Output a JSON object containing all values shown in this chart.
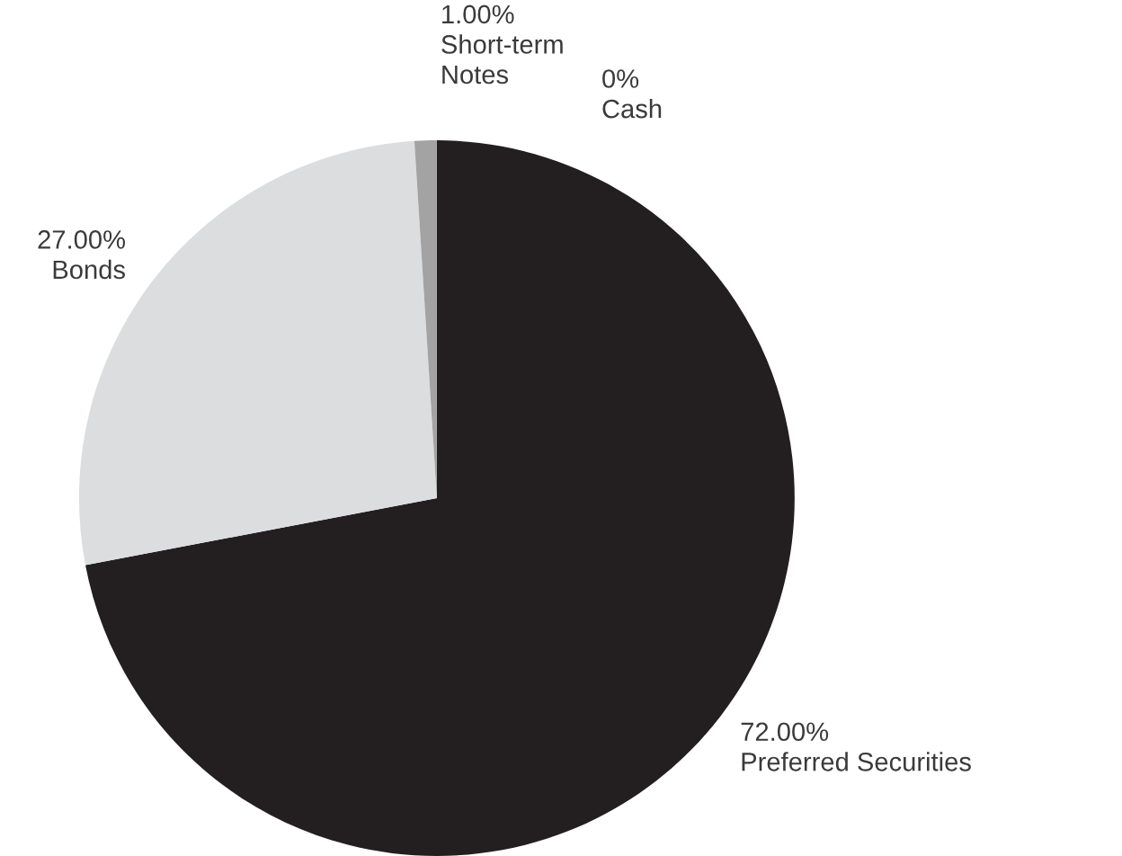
{
  "chart_data": {
    "type": "pie",
    "categories": [
      "Preferred Securities",
      "Bonds",
      "Short-term Notes",
      "Cash"
    ],
    "values": [
      72,
      27,
      1,
      0
    ],
    "value_labels": [
      "72.00%",
      "27.00%",
      "1.00%",
      "0%"
    ],
    "colors": [
      "#231f20",
      "#dcdddf",
      "#a3a3a3",
      "#6d6e71"
    ],
    "legend": false
  }
}
